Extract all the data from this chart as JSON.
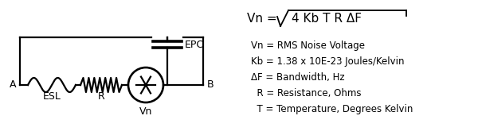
{
  "bg_color": "#ffffff",
  "fg_color": "#000000",
  "label_A": "A",
  "label_B": "B",
  "label_ESL": "ESL",
  "label_R": "R",
  "label_Vn": "Vn",
  "label_EPC": "EPC",
  "formula_prefix": "Vn = ",
  "formula_content": "4 Kb T R ΔF",
  "legend_lines": [
    "Vn = RMS Noise Voltage",
    "Kb = 1.38 x 10E-23 Joules/Kelvin",
    "ΔF = Bandwidth, Hz",
    "  R = Resistance, Ohms",
    "  T = Temperature, Degrees Kelvin"
  ],
  "font_size_label": 9,
  "font_size_formula": 11,
  "font_size_legend": 8.5,
  "lw": 1.6
}
